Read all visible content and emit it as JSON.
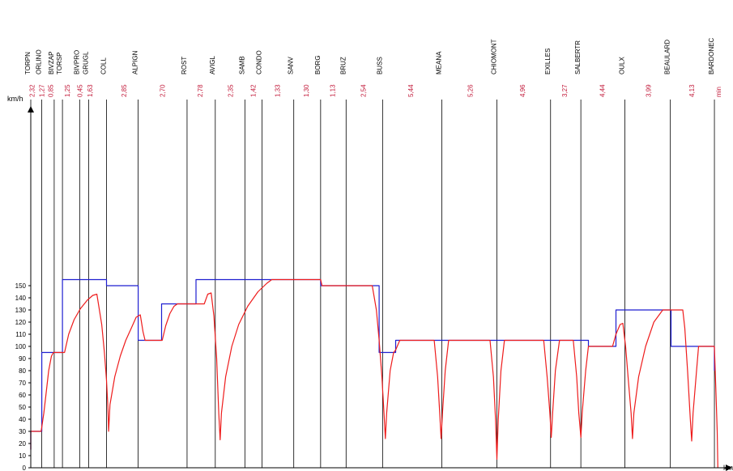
{
  "chart_data": {
    "type": "line",
    "title": "",
    "ylabel": "km/h",
    "xlabel_right": "km",
    "time_unit": "min",
    "ylim": [
      0,
      160
    ],
    "yticks": [
      0,
      10,
      20,
      30,
      40,
      50,
      60,
      70,
      80,
      90,
      100,
      110,
      120,
      130,
      140,
      150
    ],
    "xlim": [
      0,
      100
    ],
    "stations": [
      {
        "name": "TORPN",
        "x": 0.0
      },
      {
        "name": "ORLINO",
        "x": 1.6
      },
      {
        "name": "BIVZAP",
        "x": 3.4
      },
      {
        "name": "TORSP",
        "x": 4.6
      },
      {
        "name": "BIVPRO",
        "x": 7.1
      },
      {
        "name": "GRUGL",
        "x": 8.4
      },
      {
        "name": "COLL",
        "x": 11.0
      },
      {
        "name": "ALPIGN",
        "x": 15.6
      },
      {
        "name": "ROST",
        "x": 22.7
      },
      {
        "name": "AVIGL",
        "x": 26.8
      },
      {
        "name": "SAMB",
        "x": 31.1
      },
      {
        "name": "CONDO",
        "x": 33.6
      },
      {
        "name": "SANV",
        "x": 38.2
      },
      {
        "name": "BORG",
        "x": 42.1
      },
      {
        "name": "BRUZ",
        "x": 45.8
      },
      {
        "name": "BUSS",
        "x": 51.1
      },
      {
        "name": "MEANA",
        "x": 59.7
      },
      {
        "name": "CHIOMONT",
        "x": 67.7
      },
      {
        "name": "EXILLES",
        "x": 75.5
      },
      {
        "name": "SALBERTR",
        "x": 79.9
      },
      {
        "name": "OULX",
        "x": 86.3
      },
      {
        "name": "BEAULARD",
        "x": 92.9
      },
      {
        "name": "BARDONEC",
        "x": 99.3
      }
    ],
    "segment_times": [
      {
        "label": "2,32",
        "x": 0.2
      },
      {
        "label": "1,27",
        "x": 1.6
      },
      {
        "label": "0,85",
        "x": 2.9
      },
      {
        "label": "1,25",
        "x": 5.3
      },
      {
        "label": "0,45",
        "x": 7.1
      },
      {
        "label": "1,63",
        "x": 8.6
      },
      {
        "label": "2,85",
        "x": 13.5
      },
      {
        "label": "2,70",
        "x": 19.1
      },
      {
        "label": "2,78",
        "x": 24.6
      },
      {
        "label": "2,35",
        "x": 29.0
      },
      {
        "label": "1,42",
        "x": 32.3
      },
      {
        "label": "1,33",
        "x": 35.8
      },
      {
        "label": "1,30",
        "x": 40.0
      },
      {
        "label": "1,13",
        "x": 43.8
      },
      {
        "label": "2,54",
        "x": 48.3
      },
      {
        "label": "5,44",
        "x": 55.2
      },
      {
        "label": "5,26",
        "x": 63.8
      },
      {
        "label": "4,96",
        "x": 71.4
      },
      {
        "label": "3,27",
        "x": 77.5
      },
      {
        "label": "4,44",
        "x": 83.0
      },
      {
        "label": "3,99",
        "x": 89.7
      },
      {
        "label": "4,13",
        "x": 96.0
      },
      {
        "label": "min",
        "x": 99.9
      }
    ],
    "series": [
      {
        "color": "#1f1fd0",
        "points": [
          [
            0,
            15
          ],
          [
            0,
            30
          ],
          [
            1.6,
            30
          ],
          [
            1.6,
            95
          ],
          [
            4.6,
            95
          ],
          [
            4.6,
            155
          ],
          [
            11.0,
            155
          ],
          [
            11.0,
            150
          ],
          [
            15.6,
            150
          ],
          [
            15.6,
            105
          ],
          [
            19.0,
            105
          ],
          [
            19.0,
            135
          ],
          [
            24.0,
            135
          ],
          [
            24.0,
            155
          ],
          [
            42.1,
            155
          ],
          [
            42.1,
            150
          ],
          [
            50.6,
            150
          ],
          [
            50.6,
            95
          ],
          [
            53.0,
            95
          ],
          [
            53.0,
            105
          ],
          [
            81.0,
            105
          ],
          [
            81.0,
            100
          ],
          [
            85.0,
            100
          ],
          [
            85.0,
            130
          ],
          [
            93.0,
            130
          ],
          [
            93.0,
            100
          ],
          [
            99.3,
            100
          ],
          [
            99.3,
            80
          ]
        ]
      },
      {
        "color": "#ee1c1c",
        "points": [
          [
            0,
            15
          ],
          [
            0,
            30
          ],
          [
            1.5,
            30
          ],
          [
            1.9,
            45
          ],
          [
            2.2,
            60
          ],
          [
            2.6,
            80
          ],
          [
            3.0,
            92
          ],
          [
            3.3,
            95
          ],
          [
            4.9,
            95
          ],
          [
            5.5,
            110
          ],
          [
            6.3,
            122
          ],
          [
            7.2,
            131
          ],
          [
            8.2,
            138
          ],
          [
            9.0,
            142
          ],
          [
            9.6,
            143
          ],
          [
            10.3,
            118
          ],
          [
            10.7,
            95
          ],
          [
            11.0,
            72
          ],
          [
            11.2,
            50
          ],
          [
            11.3,
            30
          ],
          [
            11.5,
            52
          ],
          [
            12.2,
            75
          ],
          [
            13.0,
            92
          ],
          [
            13.8,
            105
          ],
          [
            14.6,
            115
          ],
          [
            15.3,
            124
          ],
          [
            15.9,
            126
          ],
          [
            16.3,
            112
          ],
          [
            16.6,
            105
          ],
          [
            19.1,
            105
          ],
          [
            19.6,
            117
          ],
          [
            20.2,
            127
          ],
          [
            20.8,
            133
          ],
          [
            21.3,
            135
          ],
          [
            25.2,
            135
          ],
          [
            25.7,
            143
          ],
          [
            26.2,
            144
          ],
          [
            26.6,
            125
          ],
          [
            27.0,
            90
          ],
          [
            27.3,
            45
          ],
          [
            27.5,
            23
          ],
          [
            27.7,
            45
          ],
          [
            28.3,
            75
          ],
          [
            29.2,
            100
          ],
          [
            30.2,
            118
          ],
          [
            31.5,
            133
          ],
          [
            33.0,
            145
          ],
          [
            34.3,
            152
          ],
          [
            35.0,
            155
          ],
          [
            42.1,
            155
          ],
          [
            42.3,
            150
          ],
          [
            49.6,
            150
          ],
          [
            50.2,
            130
          ],
          [
            50.6,
            105
          ],
          [
            51.0,
            75
          ],
          [
            51.3,
            45
          ],
          [
            51.5,
            24
          ],
          [
            51.7,
            45
          ],
          [
            52.2,
            80
          ],
          [
            52.7,
            95
          ],
          [
            53.0,
            97
          ],
          [
            53.6,
            105
          ],
          [
            58.6,
            105
          ],
          [
            59.1,
            75
          ],
          [
            59.4,
            45
          ],
          [
            59.6,
            24
          ],
          [
            59.8,
            45
          ],
          [
            60.2,
            80
          ],
          [
            60.7,
            105
          ],
          [
            66.7,
            105
          ],
          [
            67.2,
            75
          ],
          [
            67.5,
            40
          ],
          [
            67.7,
            7
          ],
          [
            67.9,
            40
          ],
          [
            68.3,
            80
          ],
          [
            68.8,
            105
          ],
          [
            74.5,
            105
          ],
          [
            75.0,
            75
          ],
          [
            75.4,
            45
          ],
          [
            75.6,
            25
          ],
          [
            75.8,
            45
          ],
          [
            76.2,
            80
          ],
          [
            76.8,
            105
          ],
          [
            78.8,
            105
          ],
          [
            79.3,
            75
          ],
          [
            79.6,
            45
          ],
          [
            79.9,
            25
          ],
          [
            80.1,
            45
          ],
          [
            80.6,
            80
          ],
          [
            81.0,
            100
          ],
          [
            84.5,
            100
          ],
          [
            85.0,
            110
          ],
          [
            85.6,
            118
          ],
          [
            86.0,
            119
          ],
          [
            86.4,
            100
          ],
          [
            86.8,
            72
          ],
          [
            87.2,
            45
          ],
          [
            87.4,
            24
          ],
          [
            87.6,
            45
          ],
          [
            88.3,
            75
          ],
          [
            89.3,
            100
          ],
          [
            90.5,
            120
          ],
          [
            91.8,
            130
          ],
          [
            94.7,
            130
          ],
          [
            95.0,
            115
          ],
          [
            95.4,
            80
          ],
          [
            95.8,
            40
          ],
          [
            96.0,
            22
          ],
          [
            96.2,
            45
          ],
          [
            96.7,
            80
          ],
          [
            97.0,
            100
          ],
          [
            99.3,
            100
          ],
          [
            99.5,
            65
          ],
          [
            99.7,
            30
          ],
          [
            99.8,
            0
          ]
        ]
      }
    ]
  }
}
